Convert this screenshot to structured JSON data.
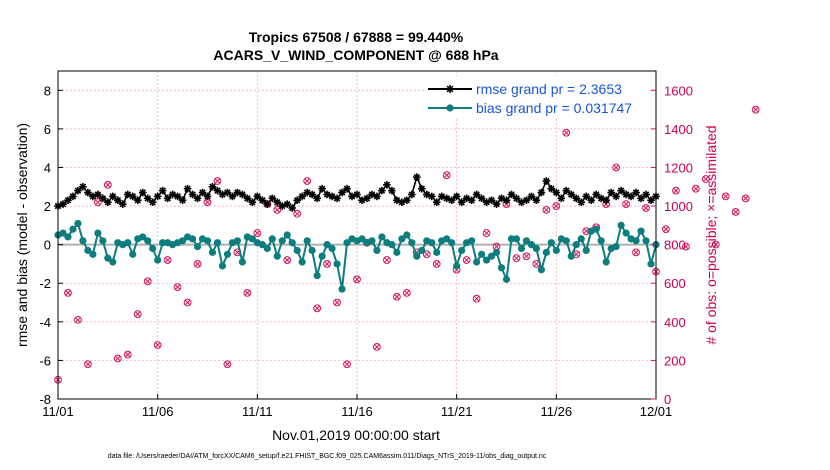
{
  "chart_data": {
    "type": "line",
    "title": "Tropics 67508 / 67888 = 99.440%",
    "subtitle": "ACARS_V_WIND_COMPONENT @ 688 hPa",
    "xlabel": "Nov.01,2019 00:00:00 start",
    "ylabel": "rmse and bias (model - observation)",
    "y2label": "# of obs: o=possible; ×=assimilated",
    "xticks": [
      "11/01",
      "11/06",
      "11/11",
      "11/16",
      "11/21",
      "11/26",
      "12/01"
    ],
    "xlim": [
      0,
      30
    ],
    "ylim": [
      -8,
      9
    ],
    "yticks": [
      -8,
      -6,
      -4,
      -2,
      0,
      2,
      4,
      6,
      8
    ],
    "y2lim": [
      0,
      1700
    ],
    "y2ticks": [
      0,
      200,
      400,
      600,
      800,
      1000,
      1200,
      1400,
      1600
    ],
    "grid": true,
    "legend": {
      "placement": "top-right",
      "rmse_label": "rmse grand pr = 2.3653",
      "bias_label": "bias grand pr = 0.031747"
    },
    "colors": {
      "rmse": "#000000",
      "bias": "#0d7d7d",
      "obs": "#d4145a",
      "legend_text": "#1a55d6",
      "zero_line": "#b0b0b0",
      "grid": "#f0b3b3"
    },
    "series": [
      {
        "name": "rmse",
        "step_days": 0.25,
        "values": [
          2.0,
          2.1,
          2.3,
          2.5,
          2.8,
          3.0,
          2.7,
          2.5,
          2.6,
          2.4,
          2.2,
          2.5,
          2.3,
          2.1,
          2.6,
          2.5,
          2.3,
          2.7,
          2.4,
          2.2,
          2.5,
          2.8,
          2.4,
          2.6,
          2.5,
          2.3,
          2.9,
          2.6,
          2.4,
          2.7,
          2.5,
          3.0,
          2.8,
          2.6,
          2.7,
          2.5,
          2.7,
          2.6,
          2.4,
          2.2,
          2.5,
          2.3,
          2.1,
          2.4,
          2.2,
          2.0,
          2.1,
          1.9,
          2.3,
          2.5,
          2.7,
          2.6,
          2.4,
          2.9,
          2.6,
          2.5,
          2.4,
          2.7,
          2.9,
          2.5,
          2.6,
          2.3,
          2.4,
          2.6,
          2.5,
          2.8,
          3.1,
          2.8,
          2.3,
          2.2,
          2.3,
          2.6,
          3.5,
          2.9,
          2.6,
          2.5,
          2.2,
          2.5,
          2.4,
          2.3,
          2.5,
          2.2,
          2.4,
          2.3,
          2.6,
          2.4,
          2.2,
          2.3,
          2.1,
          2.4,
          2.3,
          2.6,
          2.4,
          2.2,
          2.3,
          2.5,
          2.3,
          2.7,
          3.3,
          2.9,
          2.7,
          2.4,
          2.8,
          2.6,
          2.4,
          2.2,
          2.5,
          2.3,
          2.6,
          2.4,
          2.3,
          2.7,
          2.5,
          2.8,
          2.6,
          2.5,
          2.7,
          2.4,
          2.6,
          2.3,
          2.5
        ]
      },
      {
        "name": "bias",
        "step_days": 0.25,
        "values": [
          0.5,
          0.6,
          0.4,
          0.8,
          1.1,
          0.2,
          -0.3,
          -0.5,
          0.6,
          0.2,
          -0.7,
          -0.9,
          0.1,
          0.0,
          0.1,
          -0.5,
          0.3,
          0.4,
          0.2,
          -0.2,
          -0.8,
          0.1,
          0.1,
          0.0,
          0.1,
          0.2,
          0.4,
          0.3,
          -0.1,
          0.3,
          0.2,
          -0.4,
          0.1,
          -1.1,
          -0.5,
          0.1,
          0.2,
          -0.9,
          0.4,
          0.3,
          0.1,
          0.0,
          -0.2,
          0.3,
          -0.6,
          0.2,
          0.5,
          0.1,
          -0.3,
          -0.9,
          0.2,
          -0.3,
          -1.6,
          -0.6,
          0.0,
          -0.2,
          -1.0,
          -2.3,
          0.1,
          0.3,
          0.2,
          0.3,
          0.1,
          0.2,
          -0.3,
          0.4,
          0.1,
          0.0,
          -0.4,
          0.3,
          0.5,
          0.1,
          -0.6,
          -0.3,
          0.2,
          0.1,
          -0.4,
          0.2,
          0.3,
          0.1,
          -1.1,
          -0.3,
          0.1,
          0.2,
          -0.9,
          -0.5,
          -0.8,
          -0.6,
          -0.4,
          -1.2,
          -1.8,
          0.3,
          0.3,
          -0.2,
          0.2,
          0.0,
          -0.2,
          -1.3,
          -0.4,
          0.1,
          -0.3,
          0.3,
          0.2,
          -0.6,
          0.0,
          0.3,
          -0.3,
          0.7,
          0.8,
          0.2,
          -0.9,
          -0.2,
          -0.1,
          1.0,
          0.6,
          0.3,
          0.2,
          0.7,
          0.2,
          -1.0,
          0.0
        ]
      },
      {
        "name": "obs_possible",
        "axis": "right",
        "step_days": 0.5,
        "values": [
          100,
          550,
          410,
          180,
          1020,
          1110,
          210,
          230,
          440,
          610,
          280,
          720,
          580,
          500,
          700,
          1020,
          1130,
          180,
          760,
          550,
          860,
          1010,
          980,
          720,
          960,
          1130,
          470,
          700,
          500,
          180,
          620,
          810,
          270,
          720,
          530,
          550,
          760,
          750,
          700,
          1160,
          670,
          720,
          520,
          860,
          790,
          1010,
          730,
          740,
          700,
          980,
          1000,
          1380,
          750,
          870,
          890,
          1010,
          1200,
          1010,
          760,
          990,
          660,
          880,
          1080,
          790,
          1090,
          1140,
          800,
          1050,
          970,
          1040,
          1500
        ]
      }
    ]
  },
  "footer": "data file: /Users/raeder/DAI/ATM_forcXX/CAM6_setup/f.e21.FHIST_BGC.f09_025.CAM6assim.011/Diags_NTrS_2019-11/obs_diag_output.nc"
}
